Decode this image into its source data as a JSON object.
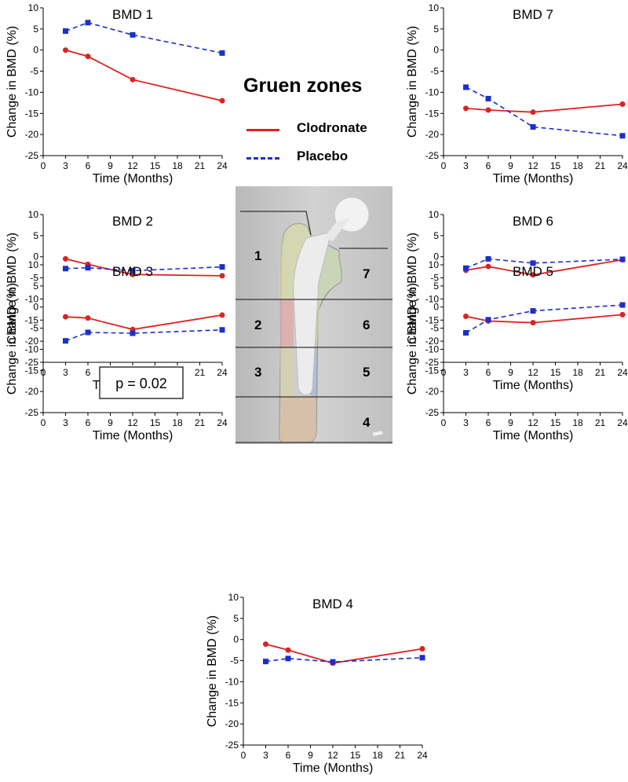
{
  "legend": {
    "title": "Gruen zones",
    "items": [
      {
        "label": "Clodronate",
        "color": "#dd2222",
        "style": "solid",
        "marker": "circle"
      },
      {
        "label": "Placebo",
        "color": "#1a2fcc",
        "style": "dashed",
        "marker": "square"
      }
    ]
  },
  "zones": [
    "1",
    "2",
    "3",
    "4",
    "5",
    "6",
    "7"
  ],
  "chart_data": [
    {
      "type": "line",
      "title": "BMD 1",
      "xlabel": "Time (Months)",
      "ylabel": "Change in BMD (%)",
      "x": [
        3,
        6,
        12,
        24
      ],
      "xlim": [
        0,
        24
      ],
      "ylim": [
        -25,
        10
      ],
      "xticks": [
        0,
        3,
        6,
        9,
        12,
        15,
        18,
        21,
        24
      ],
      "yticks": [
        10,
        5,
        0,
        -5,
        -10,
        -15,
        -20,
        -25
      ],
      "series": [
        {
          "name": "Clodronate",
          "values": [
            0,
            -1.5,
            -7,
            -12
          ]
        },
        {
          "name": "Placebo",
          "values": [
            4.5,
            6.5,
            3.6,
            -0.7
          ]
        }
      ],
      "annotation": ""
    },
    {
      "type": "line",
      "title": "BMD 7",
      "xlabel": "Time (Months)",
      "ylabel": "Change in BMD (%)",
      "x": [
        3,
        6,
        12,
        24
      ],
      "xlim": [
        0,
        24
      ],
      "ylim": [
        -25,
        10
      ],
      "xticks": [
        0,
        3,
        6,
        9,
        12,
        15,
        18,
        21,
        24
      ],
      "yticks": [
        10,
        5,
        0,
        -5,
        -10,
        -15,
        -20,
        -25
      ],
      "series": [
        {
          "name": "Clodronate",
          "values": [
            -13.8,
            -14.2,
            -14.7,
            -12.8
          ]
        },
        {
          "name": "Placebo",
          "values": [
            -8.8,
            -11.5,
            -18.2,
            -20.3
          ]
        }
      ],
      "annotation": ""
    },
    {
      "type": "line",
      "title": "BMD 2",
      "xlabel": "Time (Months)",
      "ylabel": "Change in BMD (%)",
      "x": [
        3,
        6,
        12,
        24
      ],
      "xlim": [
        0,
        24
      ],
      "ylim": [
        -25,
        10
      ],
      "xticks": [
        0,
        3,
        6,
        9,
        12,
        15,
        18,
        21,
        24
      ],
      "yticks": [
        10,
        5,
        0,
        -5,
        -10,
        -15,
        -20,
        -25
      ],
      "series": [
        {
          "name": "Clodronate",
          "values": [
            -0.5,
            -1.8,
            -4.2,
            -4.5
          ]
        },
        {
          "name": "Placebo",
          "values": [
            -2.8,
            -2.6,
            -3.3,
            -2.4
          ]
        }
      ],
      "annotation": ""
    },
    {
      "type": "line",
      "title": "BMD 6",
      "xlabel": "Time (Months)",
      "ylabel": "Change in BMD (%)",
      "x": [
        3,
        6,
        12,
        24
      ],
      "xlim": [
        0,
        24
      ],
      "ylim": [
        -25,
        10
      ],
      "xticks": [
        0,
        3,
        6,
        9,
        12,
        15,
        18,
        21,
        24
      ],
      "yticks": [
        10,
        5,
        0,
        -5,
        -10,
        -15,
        -20,
        -25
      ],
      "series": [
        {
          "name": "Clodronate",
          "values": [
            -3.2,
            -2.3,
            -4.3,
            -0.7
          ]
        },
        {
          "name": "Placebo",
          "values": [
            -2.7,
            -0.5,
            -1.5,
            -0.6
          ]
        }
      ],
      "annotation": ""
    },
    {
      "type": "line",
      "title": "BMD 3",
      "xlabel": "Time (Months)",
      "ylabel": "Change in BMD (%)",
      "x": [
        3,
        6,
        12,
        24
      ],
      "xlim": [
        0,
        24
      ],
      "ylim": [
        -25,
        10
      ],
      "xticks": [
        0,
        3,
        6,
        9,
        12,
        15,
        18,
        21,
        24
      ],
      "yticks": [
        10,
        5,
        0,
        -5,
        -10,
        -15,
        -20,
        -25
      ],
      "series": [
        {
          "name": "Clodronate",
          "values": [
            -2.3,
            -2.6,
            -5.3,
            -1.9
          ]
        },
        {
          "name": "Placebo",
          "values": [
            -8.0,
            -6.0,
            -6.2,
            -5.4
          ]
        }
      ],
      "annotation": "p = 0.02"
    },
    {
      "type": "line",
      "title": "BMD 5",
      "xlabel": "Time (Months)",
      "ylabel": "Change in BMD (%)",
      "x": [
        3,
        6,
        12,
        24
      ],
      "xlim": [
        0,
        24
      ],
      "ylim": [
        -25,
        10
      ],
      "xticks": [
        0,
        3,
        6,
        9,
        12,
        15,
        18,
        21,
        24
      ],
      "yticks": [
        10,
        5,
        0,
        -5,
        -10,
        -15,
        -20,
        -25
      ],
      "series": [
        {
          "name": "Clodronate",
          "values": [
            -2.2,
            -3.3,
            -3.7,
            -1.8
          ]
        },
        {
          "name": "Placebo",
          "values": [
            -6.1,
            -3.0,
            -0.9,
            0.5
          ]
        }
      ],
      "annotation": ""
    },
    {
      "type": "line",
      "title": "BMD 4",
      "xlabel": "Time (Months)",
      "ylabel": "Change in BMD (%)",
      "x": [
        3,
        6,
        12,
        24
      ],
      "xlim": [
        0,
        24
      ],
      "ylim": [
        -25,
        10
      ],
      "xticks": [
        0,
        3,
        6,
        9,
        12,
        15,
        18,
        21,
        24
      ],
      "yticks": [
        10,
        5,
        0,
        -5,
        -10,
        -15,
        -20,
        -25
      ],
      "series": [
        {
          "name": "Clodronate",
          "values": [
            -1.1,
            -2.5,
            -5.6,
            -2.2
          ]
        },
        {
          "name": "Placebo",
          "values": [
            -5.2,
            -4.5,
            -5.3,
            -4.3
          ]
        }
      ],
      "annotation": ""
    }
  ]
}
